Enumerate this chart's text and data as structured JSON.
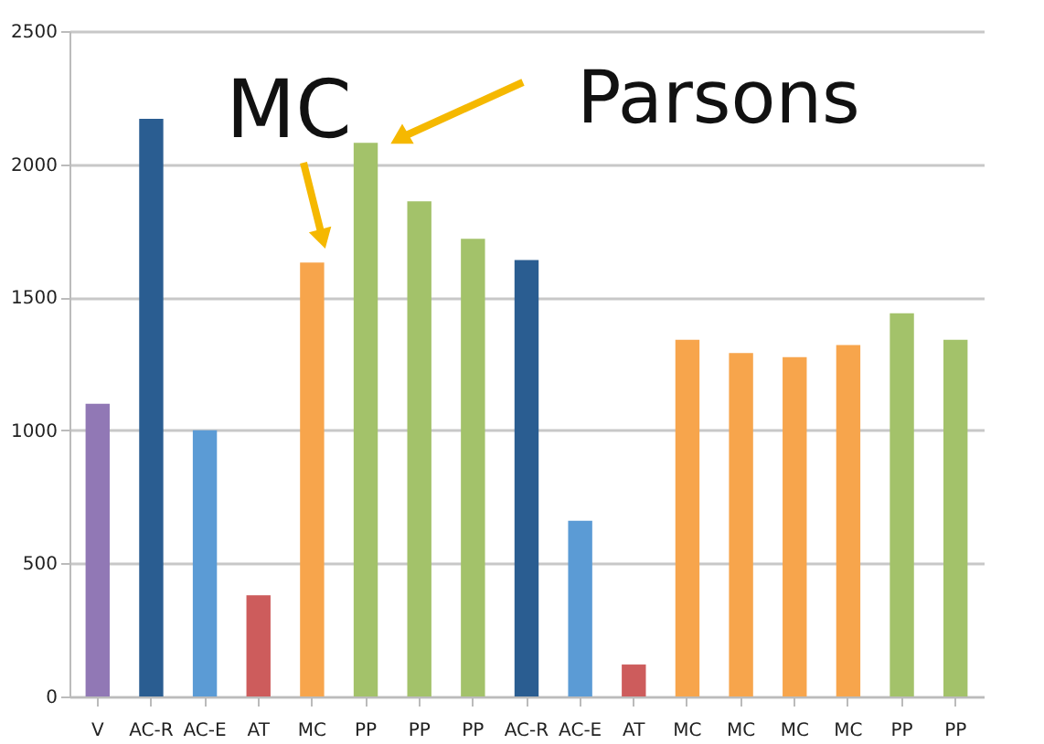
{
  "chart_data": {
    "type": "bar",
    "categories": [
      "V",
      "AC-R",
      "AC-E",
      "AT",
      "MC",
      "PP",
      "PP",
      "PP",
      "AC-R",
      "AC-E",
      "AT",
      "MC",
      "MC",
      "MC",
      "MC",
      "PP",
      "PP"
    ],
    "values": [
      1100,
      2170,
      1000,
      380,
      1630,
      2080,
      1860,
      1720,
      1640,
      660,
      120,
      1340,
      1290,
      1275,
      1320,
      1440,
      1340
    ],
    "colors": [
      "#9178b5",
      "#2a5d91",
      "#5b9bd5",
      "#cd5c5c",
      "#f7a54c",
      "#a3c26a",
      "#a3c26a",
      "#a3c26a",
      "#2a5d91",
      "#5b9bd5",
      "#cd5c5c",
      "#f7a54c",
      "#f7a54c",
      "#f7a54c",
      "#f7a54c",
      "#a3c26a",
      "#a3c26a"
    ],
    "ylim": [
      0,
      2500
    ],
    "yticks": [
      0,
      500,
      1000,
      1500,
      2000,
      2500
    ],
    "grid": "y",
    "annotations": [
      "MC",
      "Parsons"
    ]
  }
}
